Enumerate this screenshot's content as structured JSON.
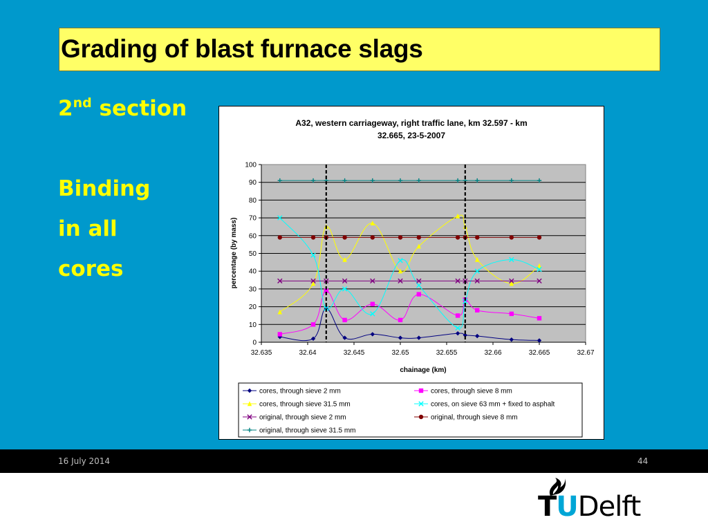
{
  "slide": {
    "title": "Grading of blast furnace slags",
    "section_number": "2",
    "section_sup": "nd",
    "section_word": " section",
    "binding_lines": [
      "Binding",
      "in all",
      "cores"
    ]
  },
  "footer": {
    "date": "16 July 2014",
    "page": "44"
  },
  "logo": {
    "t": "T",
    "u": "U",
    "delft": "Delft"
  },
  "colors": {
    "background": "#0099cc",
    "title_box": "#ffff66",
    "side_text": "#ffff00",
    "plot_area": "#c0c0c0"
  },
  "chart_data": {
    "type": "line",
    "title_lines": [
      "A32, western carriageway, right traffic lane, km 32.597 - km",
      "32.665, 23-5-2007"
    ],
    "xlabel": "chainage (km)",
    "ylabel": "percentage (by mass)",
    "xlim": [
      32.635,
      32.67
    ],
    "ylim": [
      0,
      100
    ],
    "x_ticks": [
      32.635,
      32.64,
      32.645,
      32.65,
      32.655,
      32.66,
      32.665,
      32.67
    ],
    "x_tick_labels": [
      "32.635",
      "32.64",
      "32.645",
      "32.65",
      "32.655",
      "32.66",
      "32.665",
      "32.67"
    ],
    "y_ticks": [
      0,
      10,
      20,
      30,
      40,
      50,
      60,
      70,
      80,
      90,
      100
    ],
    "y_tick_labels": [
      "0",
      "10",
      "20",
      "30",
      "40",
      "50",
      "60",
      "70",
      "80",
      "90",
      "100"
    ],
    "grid": "horizontal",
    "legend_position": "bottom",
    "section_boundaries": [
      32.642,
      32.657
    ],
    "series": [
      {
        "name": "cores, through sieve 2 mm",
        "color": "#000080",
        "marker": "diamond",
        "x": [
          32.637,
          32.6406,
          32.642,
          32.644,
          32.647,
          32.65,
          32.652,
          32.6562,
          32.657,
          32.6583,
          32.662,
          32.665
        ],
        "y": [
          3,
          2,
          19,
          2.5,
          4.5,
          2.5,
          2.5,
          5,
          4,
          3.5,
          1.5,
          1
        ]
      },
      {
        "name": "cores, through sieve 8 mm",
        "color": "#ff00ff",
        "marker": "square",
        "x": [
          32.637,
          32.6406,
          32.642,
          32.644,
          32.647,
          32.65,
          32.652,
          32.6562,
          32.657,
          32.6583,
          32.662,
          32.665
        ],
        "y": [
          4.5,
          10,
          29,
          12.5,
          21.5,
          12.5,
          27,
          15,
          24,
          18,
          16,
          13.5
        ]
      },
      {
        "name": "cores, through sieve 31.5 mm",
        "color": "#ffff00",
        "marker": "triangle",
        "x": [
          32.637,
          32.6406,
          32.642,
          32.644,
          32.647,
          32.65,
          32.652,
          32.6562,
          32.657,
          32.6583,
          32.662,
          32.665
        ],
        "y": [
          17,
          33,
          65,
          46.5,
          67,
          40,
          54,
          71,
          65,
          46.5,
          33,
          43
        ]
      },
      {
        "name": "cores, on sieve 63 mm + fixed to asphalt",
        "color": "#00ffff",
        "marker": "x",
        "x": [
          32.637,
          32.6406,
          32.642,
          32.644,
          32.647,
          32.65,
          32.652,
          32.6562,
          32.657,
          32.6583,
          32.662,
          32.665
        ],
        "y": [
          70,
          49,
          19,
          30,
          16,
          46,
          32,
          8,
          23,
          40,
          46.5,
          41
        ]
      },
      {
        "name": "original, through sieve 2 mm",
        "color": "#800080",
        "marker": "x",
        "x": [
          32.637,
          32.6406,
          32.642,
          32.644,
          32.647,
          32.65,
          32.652,
          32.6562,
          32.657,
          32.6583,
          32.662,
          32.665
        ],
        "y": [
          34.5,
          34.5,
          34.5,
          34.5,
          34.5,
          34.5,
          34.5,
          34.5,
          34.5,
          34.5,
          34.5,
          34.5
        ]
      },
      {
        "name": "original, through sieve 8 mm",
        "color": "#800000",
        "marker": "circle",
        "x": [
          32.637,
          32.6406,
          32.642,
          32.644,
          32.647,
          32.65,
          32.652,
          32.6562,
          32.657,
          32.6583,
          32.662,
          32.665
        ],
        "y": [
          59,
          59,
          59,
          59,
          59,
          59,
          59,
          59,
          59,
          59,
          59,
          59
        ]
      },
      {
        "name": "original, through sieve 31.5 mm",
        "color": "#008080",
        "marker": "plus",
        "x": [
          32.637,
          32.6406,
          32.642,
          32.644,
          32.647,
          32.65,
          32.652,
          32.6562,
          32.657,
          32.6583,
          32.662,
          32.665
        ],
        "y": [
          91,
          91,
          91,
          91,
          91,
          91,
          91,
          91,
          91,
          91,
          91,
          91
        ]
      }
    ]
  }
}
